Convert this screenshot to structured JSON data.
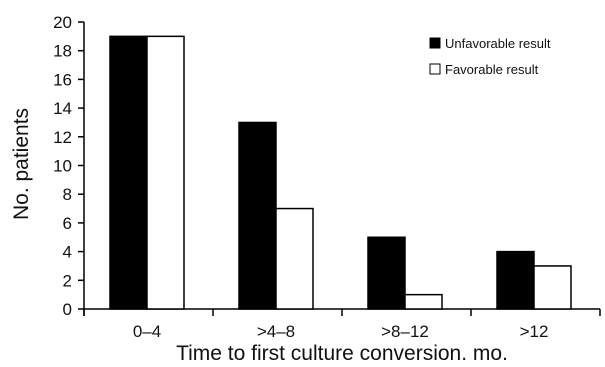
{
  "chart_data": {
    "type": "bar",
    "title": "",
    "xlabel": "Time to first culture conversion. mo.",
    "ylabel": "No. patients",
    "categories": [
      "0–4",
      ">4–8",
      ">8–12",
      ">12"
    ],
    "series": [
      {
        "name": "Unfavorable result",
        "values": [
          19,
          13,
          5,
          4
        ],
        "color": "#000000"
      },
      {
        "name": "Favorable result",
        "values": [
          19,
          7,
          1,
          3
        ],
        "color": "#ffffff"
      }
    ],
    "ylim": [
      0,
      20
    ],
    "yticks": [
      "0",
      "2",
      "4",
      "6",
      "8",
      "10",
      "12",
      "14",
      "16",
      "18",
      "20"
    ],
    "grid": false,
    "legend_position": "top-right"
  }
}
